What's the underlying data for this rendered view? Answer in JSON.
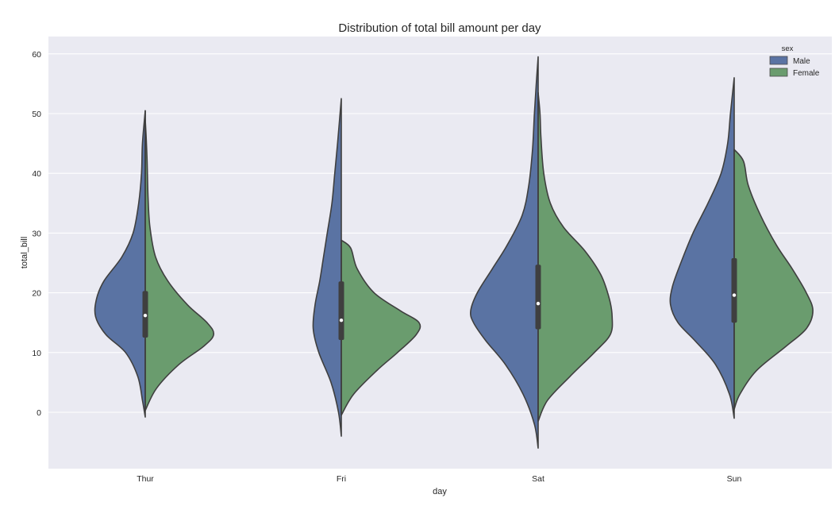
{
  "chart_data": {
    "type": "violin",
    "title": "Distribution of total bill amount per day",
    "xlabel": "day",
    "ylabel": "total_bill",
    "ylim": [
      -9,
      63
    ],
    "yticks": [
      0,
      10,
      20,
      30,
      40,
      50,
      60
    ],
    "categories": [
      "Thur",
      "Fri",
      "Sat",
      "Sun"
    ],
    "split": true,
    "grid": true,
    "legend": {
      "title": "sex",
      "placement": "top-right",
      "entries": [
        {
          "label": "Male",
          "color": "#5a73a3"
        },
        {
          "label": "Female",
          "color": "#6a9c6e"
        }
      ]
    },
    "series": [
      {
        "name": "Male",
        "color": "#5a73a3",
        "side": "left",
        "profiles": [
          {
            "category": "Thur",
            "density": [
              [
                -0.8,
                0.0
              ],
              [
                2,
                0.03
              ],
              [
                6,
                0.08
              ],
              [
                10,
                0.21
              ],
              [
                13,
                0.42
              ],
              [
                16,
                0.53
              ],
              [
                19,
                0.52
              ],
              [
                22,
                0.44
              ],
              [
                26,
                0.25
              ],
              [
                30,
                0.13
              ],
              [
                35,
                0.07
              ],
              [
                40,
                0.04
              ],
              [
                45,
                0.03
              ],
              [
                50.5,
                0.0
              ]
            ]
          },
          {
            "category": "Fri",
            "density": [
              [
                -4,
                0.0
              ],
              [
                0,
                0.03
              ],
              [
                5,
                0.11
              ],
              [
                10,
                0.24
              ],
              [
                14,
                0.3
              ],
              [
                18,
                0.28
              ],
              [
                22,
                0.23
              ],
              [
                26,
                0.19
              ],
              [
                30,
                0.15
              ],
              [
                35,
                0.1
              ],
              [
                40,
                0.07
              ],
              [
                45,
                0.04
              ],
              [
                52.5,
                0.0
              ]
            ]
          },
          {
            "category": "Sat",
            "density": [
              [
                -6,
                0.0
              ],
              [
                -2,
                0.04
              ],
              [
                3,
                0.16
              ],
              [
                8,
                0.35
              ],
              [
                12,
                0.56
              ],
              [
                15,
                0.69
              ],
              [
                17,
                0.72
              ],
              [
                20,
                0.65
              ],
              [
                24,
                0.49
              ],
              [
                28,
                0.33
              ],
              [
                33,
                0.17
              ],
              [
                38,
                0.1
              ],
              [
                44,
                0.06
              ],
              [
                50,
                0.04
              ],
              [
                55,
                0.02
              ],
              [
                59.5,
                0.0
              ]
            ]
          },
          {
            "category": "Sun",
            "density": [
              [
                -1,
                0.0
              ],
              [
                3,
                0.05
              ],
              [
                8,
                0.2
              ],
              [
                12,
                0.42
              ],
              [
                15,
                0.6
              ],
              [
                18,
                0.68
              ],
              [
                21,
                0.66
              ],
              [
                25,
                0.57
              ],
              [
                30,
                0.44
              ],
              [
                35,
                0.28
              ],
              [
                40,
                0.14
              ],
              [
                45,
                0.07
              ],
              [
                50,
                0.04
              ],
              [
                56,
                0.0
              ]
            ]
          }
        ]
      },
      {
        "name": "Female",
        "color": "#6a9c6e",
        "side": "right",
        "profiles": [
          {
            "category": "Thur",
            "density": [
              [
                0.3,
                0.0
              ],
              [
                4,
                0.12
              ],
              [
                8,
                0.36
              ],
              [
                11,
                0.62
              ],
              [
                13,
                0.73
              ],
              [
                15,
                0.66
              ],
              [
                18,
                0.45
              ],
              [
                22,
                0.24
              ],
              [
                26,
                0.11
              ],
              [
                31,
                0.05
              ],
              [
                36,
                0.03
              ],
              [
                42,
                0.02
              ],
              [
                46,
                0.01
              ],
              [
                49,
                0.0
              ]
            ]
          },
          {
            "category": "Fri",
            "density": [
              [
                -0.5,
                0.0
              ],
              [
                3,
                0.13
              ],
              [
                7,
                0.38
              ],
              [
                10,
                0.6
              ],
              [
                13,
                0.8
              ],
              [
                15,
                0.83
              ],
              [
                17,
                0.63
              ],
              [
                20,
                0.35
              ],
              [
                24,
                0.17
              ],
              [
                27.5,
                0.1
              ],
              [
                28.8,
                0.0
              ]
            ]
          },
          {
            "category": "Sat",
            "density": [
              [
                -1.5,
                0.0
              ],
              [
                2,
                0.1
              ],
              [
                6,
                0.34
              ],
              [
                10,
                0.6
              ],
              [
                13,
                0.77
              ],
              [
                16,
                0.79
              ],
              [
                19,
                0.76
              ],
              [
                23,
                0.67
              ],
              [
                27,
                0.5
              ],
              [
                31,
                0.27
              ],
              [
                35,
                0.13
              ],
              [
                40,
                0.06
              ],
              [
                46,
                0.03
              ],
              [
                50,
                0.02
              ],
              [
                53.5,
                0.0
              ]
            ]
          },
          {
            "category": "Sun",
            "density": [
              [
                0.5,
                0.0
              ],
              [
                3,
                0.06
              ],
              [
                7,
                0.24
              ],
              [
                11,
                0.55
              ],
              [
                14,
                0.77
              ],
              [
                17,
                0.84
              ],
              [
                20,
                0.77
              ],
              [
                24,
                0.62
              ],
              [
                28,
                0.45
              ],
              [
                33,
                0.28
              ],
              [
                38,
                0.15
              ],
              [
                42,
                0.1
              ],
              [
                44,
                0.0
              ]
            ]
          }
        ]
      }
    ],
    "boxes": [
      {
        "category": "Thur",
        "q1": 12.5,
        "median": 16.2,
        "q3": 20.3,
        "whisker_low": 0.3,
        "whisker_high": 50.5
      },
      {
        "category": "Fri",
        "q1": 12.1,
        "median": 15.4,
        "q3": 21.9,
        "whisker_low": -0.5,
        "whisker_high": 28.8
      },
      {
        "category": "Sat",
        "q1": 13.9,
        "median": 18.2,
        "q3": 24.7,
        "whisker_low": -1.5,
        "whisker_high": 53.5
      },
      {
        "category": "Sun",
        "q1": 15.0,
        "median": 19.6,
        "q3": 25.8,
        "whisker_low": 0.5,
        "whisker_high": 44.0
      }
    ]
  }
}
